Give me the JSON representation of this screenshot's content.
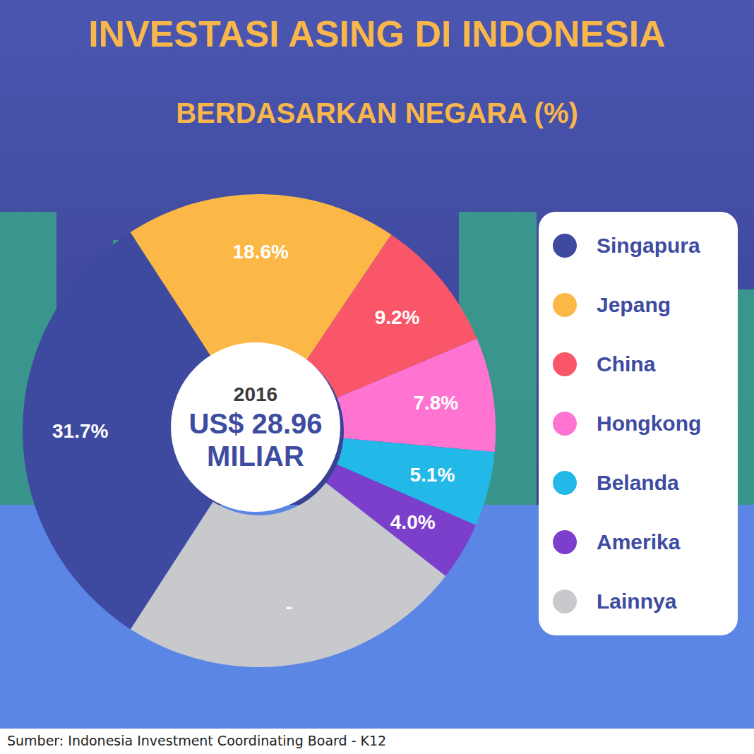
{
  "chart_data": {
    "type": "pie",
    "title": "INVESTASI ASING DI INDONESIA",
    "subtitle": "BERDASARKAN NEGARA (%)",
    "center_label": "2016",
    "center_value": "US$ 28.96 MILIAR",
    "categories": [
      "Singapura",
      "Jepang",
      "China",
      "Hongkong",
      "Belanda",
      "Amerika",
      "Lainnya"
    ],
    "values": [
      31.7,
      18.6,
      9.2,
      7.8,
      5.1,
      4.0,
      23.6
    ],
    "value_labels": [
      "31.7%",
      "18.6%",
      "9.2%",
      "7.8%",
      "5.1%",
      "4.0%",
      "-"
    ],
    "colors": [
      "#3e4a9f",
      "#fbb847",
      "#f9566a",
      "#ff74d1",
      "#22b9e8",
      "#7c3fcc",
      "#c8c9cc"
    ],
    "data_labels": true,
    "legend": "right",
    "source": "Sumber: Indonesia Investment Coordinating Board - K12"
  }
}
